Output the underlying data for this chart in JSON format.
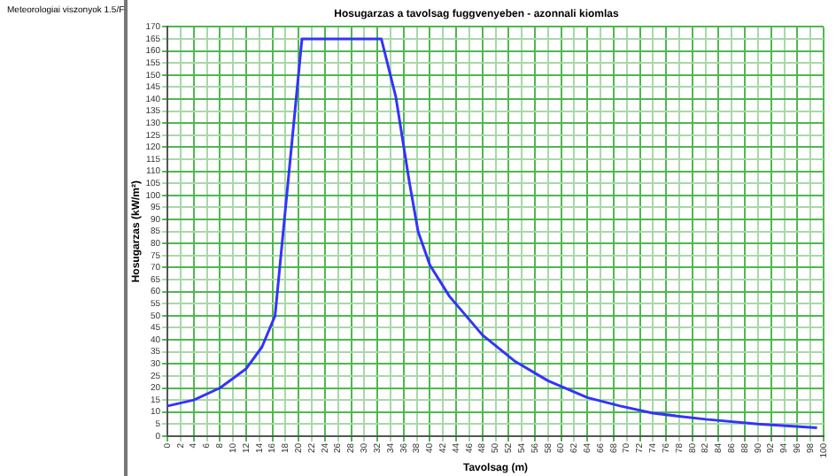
{
  "chart_data": {
    "type": "line",
    "title": "Hosugarzas a tavolsag fuggvenyeben - azonnali kiomlas",
    "xlabel": "Tavolsag (m)",
    "ylabel": "Hosugarzas (kW/m²)",
    "series": [
      {
        "name": "Meteorologiai viszonyok 1.5/F",
        "color": "#3333ff",
        "x": [
          0,
          4,
          8,
          12,
          14.4,
          16.4,
          20.5,
          32.6,
          34.8,
          36.9,
          38.2,
          40,
          43,
          48,
          53,
          58,
          64,
          69,
          74,
          82,
          90,
          99
        ],
        "values": [
          12.5,
          15,
          20,
          28,
          37,
          50,
          165,
          165,
          141,
          105,
          85,
          71,
          58,
          42,
          31,
          23,
          16,
          12.5,
          9.5,
          7,
          5,
          3.5
        ]
      }
    ],
    "xlim": [
      0,
      100
    ],
    "xticks": [
      0,
      2,
      4,
      6,
      8,
      10,
      12,
      14,
      16,
      18,
      20,
      22,
      24,
      26,
      28,
      30,
      32,
      34,
      36,
      38,
      40,
      42,
      44,
      46,
      48,
      50,
      52,
      54,
      56,
      58,
      60,
      62,
      64,
      66,
      68,
      70,
      72,
      74,
      76,
      78,
      80,
      82,
      84,
      86,
      88,
      90,
      92,
      94,
      96,
      98,
      100
    ],
    "ylim": [
      0,
      170
    ],
    "yticks": [
      0,
      5,
      10,
      15,
      20,
      25,
      30,
      35,
      40,
      45,
      50,
      55,
      60,
      65,
      70,
      75,
      80,
      85,
      90,
      95,
      100,
      105,
      110,
      115,
      120,
      125,
      130,
      135,
      140,
      145,
      150,
      155,
      160,
      165,
      170
    ],
    "grid": true,
    "legend": "left",
    "marker": "none",
    "line_style": "solid"
  }
}
